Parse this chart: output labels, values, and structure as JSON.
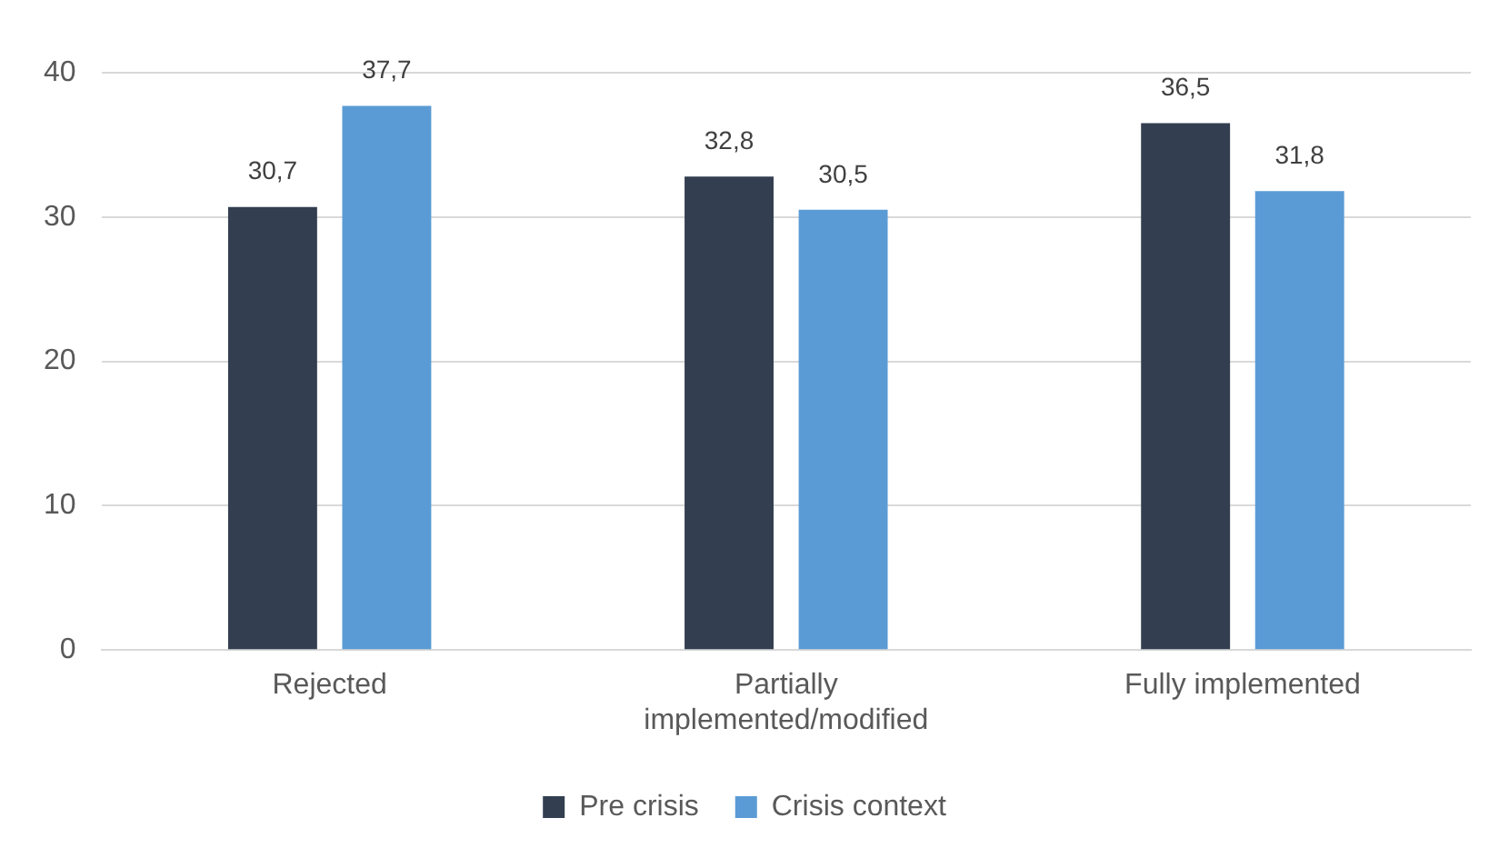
{
  "chart_data": {
    "type": "bar",
    "categories": [
      "Rejected",
      "Partially implemented/modified",
      "Fully implemented"
    ],
    "series": [
      {
        "name": "Pre crisis",
        "color": "#333f50",
        "values": [
          30.7,
          32.8,
          36.5
        ],
        "value_labels": [
          "30,7",
          "32,8",
          "36,5"
        ]
      },
      {
        "name": "Crisis context",
        "color": "#5b9bd5",
        "values": [
          37.7,
          30.5,
          31.8
        ],
        "value_labels": [
          "37,7",
          "30,5",
          "31,8"
        ]
      }
    ],
    "ylim": [
      0,
      40
    ],
    "yticks": [
      0,
      10,
      20,
      30,
      40
    ],
    "grid": "y",
    "legend": "bottom"
  }
}
